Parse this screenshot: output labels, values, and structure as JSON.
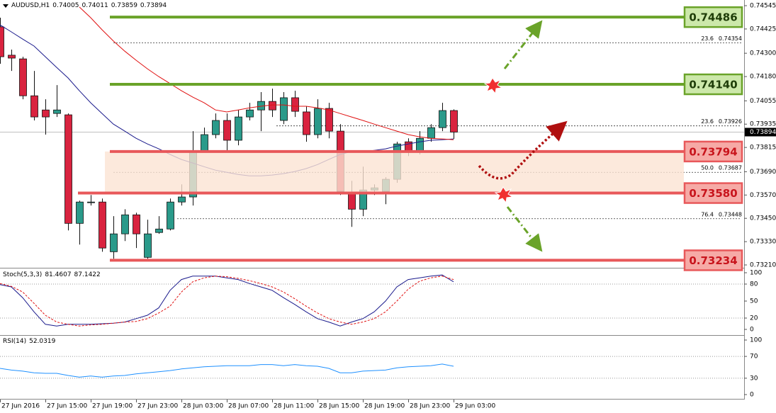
{
  "chart_data": [
    {
      "type": "candlestick",
      "title": "AUDUSD,H1",
      "title_values": [
        0.74005,
        0.74011,
        0.73859,
        0.73894
      ],
      "categories": [
        "27 Jun 2016",
        null,
        null,
        null,
        "27 Jun 15:00",
        null,
        null,
        null,
        "27 Jun 19:00",
        null,
        null,
        null,
        "27 Jun 23:00",
        null,
        null,
        null,
        "28 Jun 03:00",
        null,
        null,
        null,
        "28 Jun 07:00",
        null,
        null,
        null,
        "28 Jun 11:00",
        null,
        null,
        null,
        "28 Jun 15:00",
        null,
        null,
        null,
        "28 Jun 19:00",
        null,
        null,
        null,
        "28 Jun 23:00",
        null,
        null,
        null,
        "29 Jun 03:00"
      ],
      "open": [
        0.74436,
        0.7429,
        0.74271,
        0.74081,
        0.74008,
        0.7399,
        0.73983,
        0.73424,
        0.73534,
        0.73534,
        0.73278,
        0.7337,
        0.73468,
        0.73249,
        0.73377,
        0.73395,
        0.73534,
        0.7356,
        0.73797,
        0.73881,
        0.73954,
        0.73852,
        0.73972,
        0.74008,
        0.74052,
        0.73954,
        0.74071,
        0.73998,
        0.73881,
        0.74016,
        0.73899,
        0.73578,
        0.73497,
        0.73596,
        0.73589,
        0.73651,
        0.73844,
        0.73794,
        0.73862,
        0.73917,
        0.74005
      ],
      "high": [
        0.74483,
        0.74319,
        0.74282,
        0.74209,
        0.74063,
        0.74136,
        0.7399,
        0.73541,
        0.7357,
        0.73552,
        0.73461,
        0.73497,
        0.73479,
        0.73443,
        0.73461,
        0.73552,
        0.73625,
        0.73899,
        0.73917,
        0.7399,
        0.7399,
        0.74008,
        0.74045,
        0.741,
        0.74118,
        0.741,
        0.74107,
        0.74027,
        0.74063,
        0.74045,
        0.73935,
        0.73643,
        0.73716,
        0.73625,
        0.73662,
        0.73844,
        0.73862,
        0.73899,
        0.73935,
        0.74045,
        0.74011
      ],
      "low": [
        0.74246,
        0.74209,
        0.74063,
        0.73954,
        0.73881,
        0.73972,
        0.73388,
        0.73315,
        0.73516,
        0.73278,
        0.73242,
        0.73333,
        0.73297,
        0.73242,
        0.7337,
        0.73388,
        0.73516,
        0.73516,
        0.73794,
        0.73862,
        0.73794,
        0.73826,
        0.73954,
        0.73899,
        0.73972,
        0.73935,
        0.73972,
        0.73844,
        0.73862,
        0.73862,
        0.7357,
        0.73406,
        0.73461,
        0.7357,
        0.73523,
        0.73633,
        0.73771,
        0.73779,
        0.73844,
        0.73899,
        0.73859
      ],
      "close": [
        0.74282,
        0.74275,
        0.74081,
        0.73972,
        0.73972,
        0.74008,
        0.73424,
        0.73534,
        0.73534,
        0.73297,
        0.7337,
        0.73468,
        0.7337,
        0.7337,
        0.73395,
        0.73534,
        0.7356,
        0.73797,
        0.73881,
        0.73954,
        0.73852,
        0.73972,
        0.74008,
        0.74052,
        0.74008,
        0.74071,
        0.74001,
        0.73881,
        0.74016,
        0.73899,
        0.73589,
        0.73497,
        0.73596,
        0.73607,
        0.73651,
        0.73833,
        0.73794,
        0.73862,
        0.73917,
        0.74005,
        0.73894
      ],
      "up_color": "#2a9a8a",
      "down_color": "#d9233f",
      "series": [
        {
          "color": "#1a1a8c",
          "values": [
            0.74446,
            0.7441,
            0.74373,
            0.74337,
            0.74282,
            0.74227,
            0.74173,
            0.74107,
            0.74045,
            0.7399,
            0.73935,
            0.73899,
            0.73862,
            0.73833,
            0.73808,
            0.73779,
            0.73753,
            0.73735,
            0.73716,
            0.73698,
            0.73687,
            0.73676,
            0.73669,
            0.73669,
            0.73673,
            0.7368,
            0.73691,
            0.73706,
            0.73727,
            0.73753,
            0.73779,
            0.73794,
            0.73793,
            0.738,
            0.73808,
            0.73822,
            0.73833,
            0.73844,
            0.73852,
            0.73855,
            0.73859
          ]
        },
        {
          "color": "#e01010",
          "values": [
            null,
            null,
            null,
            null,
            null,
            null,
            null,
            0.74538,
            0.74483,
            0.74421,
            0.74363,
            0.74311,
            0.74264,
            0.7422,
            0.7418,
            0.74144,
            0.74107,
            0.74074,
            0.74045,
            0.74008,
            0.73998,
            0.74008,
            0.74019,
            0.74027,
            0.74034,
            0.74034,
            0.74027,
            0.74027,
            0.74019,
            0.74008,
            0.7399,
            0.73972,
            0.73954,
            0.73935,
            0.73917,
            0.73899,
            0.73881,
            0.7387,
            0.73862,
            0.73859,
            0.73855
          ]
        }
      ],
      "ylim": [
        0.7321,
        0.74545
      ],
      "yticks": [
        {
          "value": 0.7321,
          "label": "0.73210"
        },
        {
          "value": 0.7333,
          "label": "0.73330"
        },
        {
          "value": 0.7345,
          "label": "0.73450"
        },
        {
          "value": 0.7357,
          "label": "0.73570"
        },
        {
          "value": 0.7369,
          "label": "0.73690"
        },
        0.73815,
        0.73935,
        0.74055,
        {
          "value": 0.7418,
          "label": "0.74180"
        },
        {
          "value": 0.743,
          "label": "0.74300"
        },
        0.74425,
        0.74545
      ],
      "last_price": 0.73894,
      "levels": [
        {
          "value": 0.74486,
          "color": "#6aa329",
          "fill": "#cce8aa",
          "text_color": "#1e3d08"
        },
        {
          "value": 0.7414,
          "label": "0.74140",
          "color": "#6aa329",
          "fill": "#cce8aa",
          "text_color": "#1e3d08"
        },
        {
          "value": 0.73794,
          "color": "#e8585a",
          "fill": "#f6aaa6",
          "text_color": "#c8141c"
        },
        {
          "value": 0.7358,
          "label": "0.73580",
          "color": "#e8585a",
          "fill": "#f6aaa6",
          "text_color": "#c8141c"
        },
        {
          "value": 0.73234,
          "color": "#e8585a",
          "fill": "#f6aaa6",
          "text_color": "#c8141c"
        }
      ],
      "zone_color": "#fbe3d3",
      "fib_levels": [
        {
          "level": "23.6",
          "value": 0.74354
        },
        {
          "level": "23.6",
          "value": 0.73926
        },
        {
          "level": "50.0",
          "value": 0.73687
        },
        {
          "level": "76.4",
          "value": 0.73448
        }
      ]
    },
    {
      "type": "line",
      "title": "Stoch(5,3,3)",
      "title_values": [
        81.4607,
        87.1422
      ],
      "series": [
        {
          "color": "#1a1a8c",
          "values": [
            79,
            75,
            56,
            31,
            9,
            6,
            9,
            9,
            9,
            10,
            11,
            13,
            19,
            25,
            38,
            69,
            88,
            94,
            94,
            94,
            91,
            88,
            81,
            75,
            69,
            56,
            44,
            31,
            19,
            13,
            6,
            13,
            19,
            31,
            50,
            75,
            88,
            91,
            94,
            96,
            84
          ]
        },
        {
          "color": "#e01010",
          "dashed": true,
          "values": [
            81,
            76,
            66,
            46,
            25,
            13,
            9,
            6,
            8,
            9,
            11,
            13,
            14,
            19,
            29,
            41,
            66,
            84,
            91,
            94,
            93,
            90,
            86,
            81,
            75,
            66,
            54,
            41,
            29,
            19,
            13,
            9,
            13,
            19,
            31,
            50,
            71,
            85,
            91,
            94,
            88
          ]
        }
      ],
      "ylim": [
        0,
        100
      ],
      "yticks": [
        0,
        20,
        50,
        80,
        100
      ],
      "levels": [
        20,
        80
      ]
    },
    {
      "type": "line",
      "title": "RSI(14)",
      "title_values": [
        52.0319
      ],
      "series": [
        {
          "color": "#1e90ff",
          "values": [
            48,
            45,
            43,
            40,
            39,
            39,
            35,
            32,
            34,
            32,
            34,
            35,
            38,
            40,
            42,
            44,
            47,
            49,
            51,
            52,
            53,
            53,
            53,
            55,
            55,
            53,
            55,
            53,
            52,
            48,
            40,
            40,
            43,
            44,
            45,
            49,
            51,
            52,
            53,
            56,
            52
          ]
        }
      ],
      "ylim": [
        0,
        100
      ],
      "yticks": [
        0,
        30,
        70,
        100
      ],
      "levels": [
        30,
        70
      ]
    }
  ]
}
